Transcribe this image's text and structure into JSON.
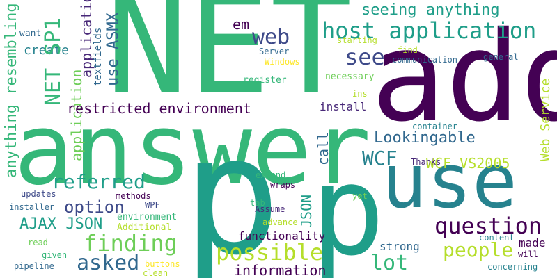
{
  "palette": {
    "dark_purple": "#440154",
    "purple": "#482878",
    "indigo": "#3e4a89",
    "blue": "#31688e",
    "teal": "#26828e",
    "teal_green": "#1f9e89",
    "green": "#35b779",
    "light_green": "#6ece58",
    "lime": "#b5de2b",
    "yellow": "#fde725"
  },
  "words": [
    {
      "text": "NET",
      "color": "#35b779"
    },
    {
      "text": "add",
      "color": "#440154"
    },
    {
      "text": "answer",
      "color": "#35b779"
    },
    {
      "text": "p",
      "color": "#1f9e89"
    },
    {
      "text": "p",
      "color": "#1f9e89"
    },
    {
      "text": "use",
      "color": "#26828e"
    },
    {
      "text": "host application",
      "color": "#1f9e89"
    },
    {
      "text": "seeing anything",
      "color": "#1f9e89"
    },
    {
      "text": "web",
      "color": "#3e4a89"
    },
    {
      "text": "em",
      "color": "#440154"
    },
    {
      "text": "see",
      "color": "#3e4a89"
    },
    {
      "text": "create",
      "color": "#26828e"
    },
    {
      "text": "NET SP1",
      "color": "#35b779"
    },
    {
      "text": "application",
      "color": "#482878"
    },
    {
      "text": "use ASMX",
      "color": "#31688e"
    },
    {
      "text": "textfields",
      "color": "#31688e"
    },
    {
      "text": "application",
      "color": "#6ece58"
    },
    {
      "text": "anything resembling",
      "color": "#35b779"
    },
    {
      "text": "want",
      "color": "#31688e"
    },
    {
      "text": "restricted environment",
      "color": "#440154"
    },
    {
      "text": "Server",
      "color": "#31688e"
    },
    {
      "text": "Windows",
      "color": "#fde725"
    },
    {
      "text": "starting",
      "color": "#b5de2b"
    },
    {
      "text": "find",
      "color": "#b5de2b"
    },
    {
      "text": "communication",
      "color": "#31688e"
    },
    {
      "text": "general",
      "color": "#31688e"
    },
    {
      "text": "necessary",
      "color": "#6ece58"
    },
    {
      "text": "register",
      "color": "#35b779"
    },
    {
      "text": "ins",
      "color": "#b5de2b"
    },
    {
      "text": "install",
      "color": "#482878"
    },
    {
      "text": "Lookingable",
      "color": "#31688e"
    },
    {
      "text": "container",
      "color": "#26828e"
    },
    {
      "text": "Web Service",
      "color": "#b5de2b"
    },
    {
      "text": "WCF",
      "color": "#26828e"
    },
    {
      "text": "WCF VS2005",
      "color": "#b5de2b"
    },
    {
      "text": "Thanks",
      "color": "#482878"
    },
    {
      "text": "referred",
      "color": "#1f9e89"
    },
    {
      "text": "call",
      "color": "#31688e"
    },
    {
      "text": "JSON",
      "color": "#1f9e89"
    },
    {
      "text": "option",
      "color": "#3e4a89"
    },
    {
      "text": "updates",
      "color": "#3e4a89"
    },
    {
      "text": "installer",
      "color": "#31688e"
    },
    {
      "text": "methods",
      "color": "#440154"
    },
    {
      "text": "WPF",
      "color": "#3e4a89"
    },
    {
      "text": "environment",
      "color": "#35b779"
    },
    {
      "text": "Additional",
      "color": "#b5de2b"
    },
    {
      "text": "AJAX JSON",
      "color": "#1f9e89"
    },
    {
      "text": "extend",
      "color": "#35b779"
    },
    {
      "text": "wraps",
      "color": "#440154"
    },
    {
      "text": "tab",
      "color": "#35b779"
    },
    {
      "text": "Assume",
      "color": "#482878"
    },
    {
      "text": "yet",
      "color": "#6ece58"
    },
    {
      "text": "advance",
      "color": "#b5de2b"
    },
    {
      "text": "finding",
      "color": "#6ece58"
    },
    {
      "text": "question",
      "color": "#440154"
    },
    {
      "text": "functionality",
      "color": "#440154"
    },
    {
      "text": "possible",
      "color": "#b5de2b"
    },
    {
      "text": "people",
      "color": "#b5de2b"
    },
    {
      "text": "made",
      "color": "#440154"
    },
    {
      "text": "asked",
      "color": "#31688e"
    },
    {
      "text": "lot",
      "color": "#35b779"
    },
    {
      "text": "content",
      "color": "#26828e"
    },
    {
      "text": "will",
      "color": "#440154"
    },
    {
      "text": "strong",
      "color": "#31688e"
    },
    {
      "text": "information",
      "color": "#440154"
    },
    {
      "text": "concerning",
      "color": "#26828e"
    },
    {
      "text": "read",
      "color": "#6ece58"
    },
    {
      "text": "given",
      "color": "#35b779"
    },
    {
      "text": "buttons",
      "color": "#fde725"
    },
    {
      "text": "pipeline",
      "color": "#31688e"
    },
    {
      "text": "clean",
      "color": "#b5de2b"
    }
  ]
}
